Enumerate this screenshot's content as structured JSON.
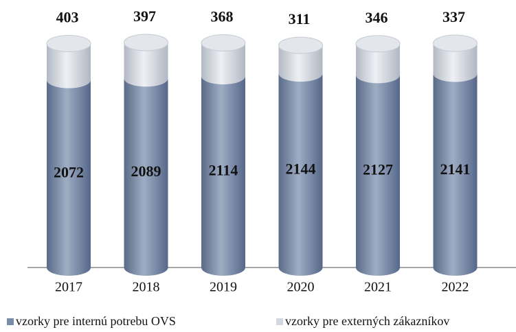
{
  "chart_data": {
    "type": "cylinder-stacked-bar",
    "categories": [
      "2017",
      "2018",
      "2019",
      "2020",
      "2021",
      "2022"
    ],
    "series": [
      {
        "name": "vzorky pre internú potrebu OVS",
        "color": "#7a8ca8",
        "values": [
          2072,
          2089,
          2114,
          2144,
          2127,
          2141
        ]
      },
      {
        "name": "vzorky pre externých zákazníkov",
        "color": "#d3d8e0",
        "values": [
          403,
          397,
          368,
          311,
          346,
          337
        ]
      }
    ],
    "legend": "bottom"
  }
}
